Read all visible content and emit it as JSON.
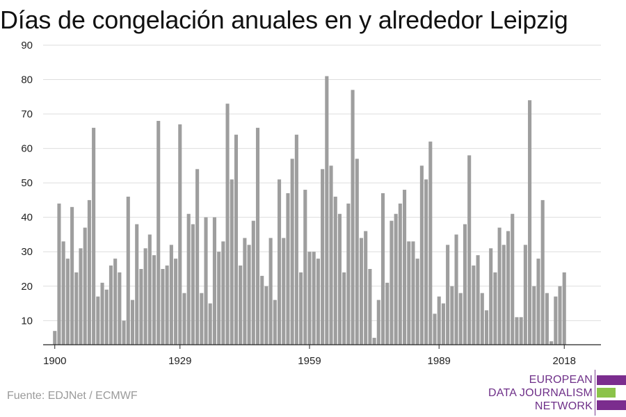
{
  "title": "Días de congelación anuales en y alrededor Leipzig",
  "source": "Fuente: EDJNet / ECMWF",
  "logo": {
    "lines": [
      "EUROPEAN",
      "DATA JOURNALISM",
      "NETWORK"
    ],
    "colors": {
      "purple": "#7b2d8e",
      "green": "#8bc34a"
    }
  },
  "colors": {
    "bar": "#9e9e9e",
    "grid": "#dddddd",
    "axis": "#222222",
    "text": "#222222"
  },
  "chart_data": {
    "type": "bar",
    "title": "Días de congelación anuales en y alrededor Leipzig",
    "xlabel": "",
    "ylabel": "",
    "ylim": [
      3,
      91
    ],
    "yticks": [
      10,
      20,
      30,
      40,
      50,
      60,
      70,
      80,
      90
    ],
    "xticks": [
      1900,
      1929,
      1959,
      1989,
      2018
    ],
    "grid": true,
    "x": [
      1900,
      1901,
      1902,
      1903,
      1904,
      1905,
      1906,
      1907,
      1908,
      1909,
      1910,
      1911,
      1912,
      1913,
      1914,
      1915,
      1916,
      1917,
      1918,
      1919,
      1920,
      1921,
      1922,
      1923,
      1924,
      1925,
      1926,
      1927,
      1928,
      1929,
      1930,
      1931,
      1932,
      1933,
      1934,
      1935,
      1936,
      1937,
      1938,
      1939,
      1940,
      1941,
      1942,
      1943,
      1944,
      1945,
      1946,
      1947,
      1948,
      1949,
      1950,
      1951,
      1952,
      1953,
      1954,
      1955,
      1956,
      1957,
      1958,
      1959,
      1960,
      1961,
      1962,
      1963,
      1964,
      1965,
      1966,
      1967,
      1968,
      1969,
      1970,
      1971,
      1972,
      1973,
      1974,
      1975,
      1976,
      1977,
      1978,
      1979,
      1980,
      1981,
      1982,
      1983,
      1984,
      1985,
      1986,
      1987,
      1988,
      1989,
      1990,
      1991,
      1992,
      1993,
      1994,
      1995,
      1996,
      1997,
      1998,
      1999,
      2000,
      2001,
      2002,
      2003,
      2004,
      2005,
      2006,
      2007,
      2008,
      2009,
      2010,
      2011,
      2012,
      2013,
      2014,
      2015,
      2016,
      2017,
      2018
    ],
    "values": [
      7,
      44,
      33,
      28,
      43,
      24,
      31,
      37,
      45,
      66,
      17,
      21,
      19,
      26,
      28,
      24,
      10,
      46,
      16,
      38,
      25,
      31,
      35,
      29,
      68,
      25,
      26,
      32,
      28,
      67,
      18,
      41,
      38,
      54,
      18,
      40,
      15,
      40,
      30,
      33,
      73,
      51,
      64,
      26,
      34,
      32,
      39,
      66,
      23,
      20,
      34,
      16,
      51,
      34,
      47,
      57,
      64,
      24,
      48,
      30,
      30,
      28,
      54,
      81,
      55,
      46,
      41,
      24,
      44,
      77,
      57,
      34,
      36,
      25,
      5,
      16,
      47,
      21,
      39,
      41,
      44,
      48,
      33,
      33,
      28,
      55,
      51,
      62,
      12,
      17,
      15,
      32,
      20,
      35,
      18,
      38,
      58,
      26,
      29,
      18,
      13,
      31,
      24,
      37,
      32,
      36,
      41,
      11,
      11,
      32,
      74,
      20,
      28,
      45,
      18,
      4,
      17,
      20,
      24
    ]
  }
}
